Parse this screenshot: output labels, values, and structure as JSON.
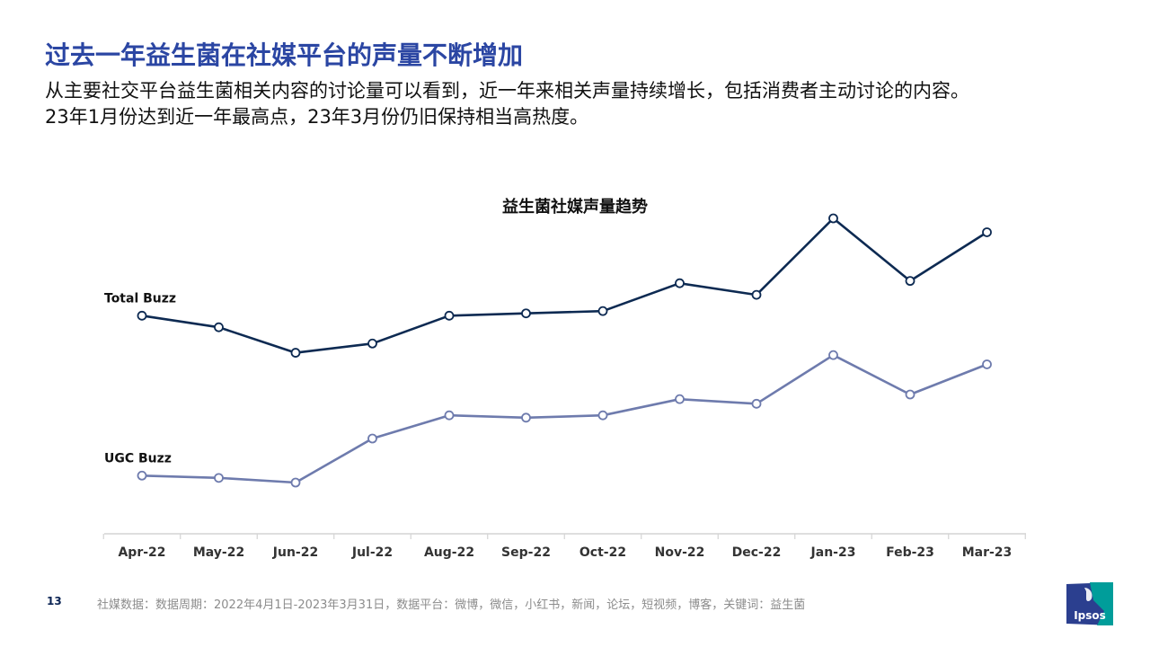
{
  "header": {
    "title": "过去一年益生菌在社媒平台的声量不断增加",
    "subtitle_line1": "从主要社交平台益生菌相关内容的讨论量可以看到，近一年来相关声量持续增长，包括消费者主动讨论的内容。",
    "subtitle_line2": "23年1月份达到近一年最高点，23年3月份仍旧保持相当高热度。"
  },
  "chart_data": {
    "type": "line",
    "title": "益生菌社媒声量趋势",
    "categories": [
      "Apr-22",
      "May-22",
      "Jun-22",
      "Jul-22",
      "Aug-22",
      "Sep-22",
      "Oct-22",
      "Nov-22",
      "Dec-22",
      "Jan-23",
      "Feb-23",
      "Mar-23"
    ],
    "series": [
      {
        "name": "Total Buzz",
        "color": "#0d2a52",
        "values": [
          10.0,
          9.5,
          8.4,
          8.8,
          10.0,
          10.1,
          10.2,
          11.4,
          10.9,
          14.2,
          11.5,
          13.6
        ]
      },
      {
        "name": "UGC Buzz",
        "color": "#6e7bad",
        "values": [
          3.1,
          3.0,
          2.8,
          4.7,
          5.7,
          5.6,
          5.7,
          6.4,
          6.2,
          8.3,
          6.6,
          7.9
        ]
      }
    ],
    "xlabel": "",
    "ylabel": "",
    "y_axis_visible": false,
    "grid": false,
    "legend": "inline labels at left of each line"
  },
  "footer": {
    "page_number": "13",
    "note": "社媒数据：数据周期：2022年4月1日-2023年3月31日，数据平台：微博，微信，小红书，新闻，论坛，短视频，博客，关键词：益生菌",
    "logo_text": "Ipsos",
    "logo_color": "#009d9a"
  }
}
